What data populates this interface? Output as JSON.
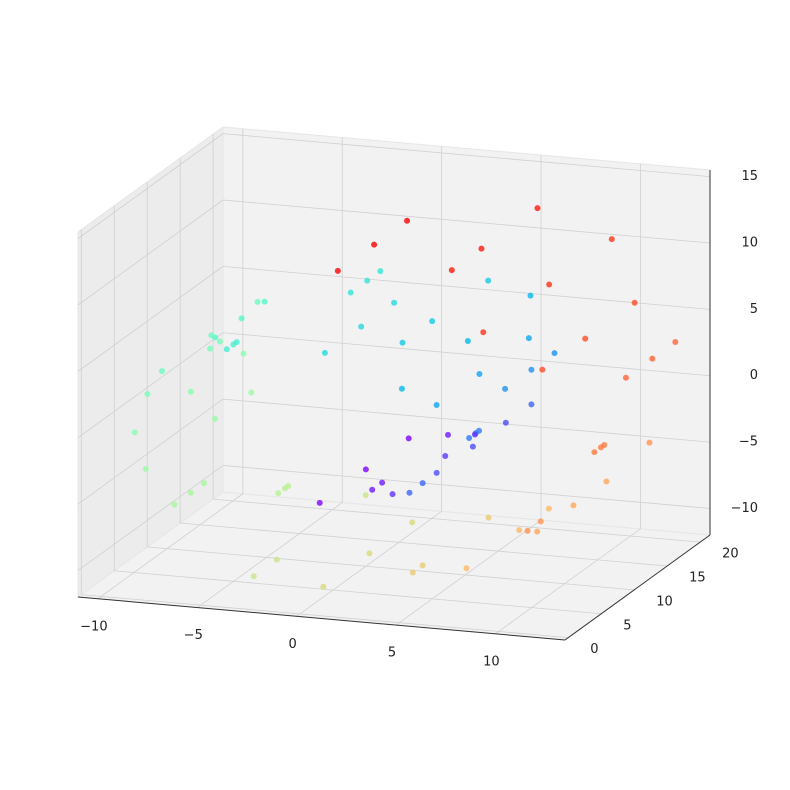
{
  "chart_data": {
    "type": "scatter3d",
    "x": [
      0,
      1.48,
      3.0,
      4.39,
      5.51,
      6.19,
      6.34,
      5.88,
      4.8,
      3.17,
      1.09,
      -1.26,
      -3.68,
      -5.92,
      -7.77,
      -9.0,
      -9.47,
      -9.08,
      -7.81,
      -5.73,
      -2.99,
      0.18,
      3.52,
      6.72,
      9.45,
      11.45,
      12.49,
      12.42,
      11.2,
      8.89,
      5.65,
      1.74,
      0,
      1.48,
      3.0,
      4.39,
      5.51,
      6.19,
      6.34,
      5.88,
      4.8,
      3.17,
      1.09,
      -1.26,
      -3.68,
      -5.92,
      -7.77,
      -9.0,
      -9.47,
      -9.08,
      -7.81,
      -5.73,
      -2.99,
      0.18,
      3.52,
      6.72,
      9.45,
      11.45,
      12.49,
      12.42,
      11.2,
      8.89,
      5.65,
      1.74,
      0,
      1.48,
      3.0,
      4.39,
      5.51,
      6.19,
      6.34,
      5.88,
      4.8,
      3.17,
      1.09,
      -1.26,
      -3.68,
      -5.92,
      -7.77,
      -9.0,
      -9.47,
      -9.08,
      -7.81,
      -5.73,
      -2.99,
      0.18,
      3.52,
      6.72,
      9.45,
      11.45,
      12.49,
      12.42,
      11.2,
      8.89,
      5.65,
      1.74
    ],
    "y": [
      3,
      8,
      13,
      18,
      2,
      7,
      12,
      17,
      1,
      6,
      11,
      16,
      0,
      5,
      10,
      15,
      20,
      4,
      9,
      14,
      19,
      3,
      8,
      13,
      18,
      2,
      7,
      12,
      17,
      1,
      6,
      11,
      10,
      18,
      5,
      13,
      0,
      8,
      16,
      3,
      11,
      19,
      6,
      14,
      1,
      9,
      17,
      4,
      12,
      20,
      7,
      15,
      2,
      10,
      18,
      5,
      13,
      0,
      8,
      16,
      3,
      11,
      19,
      6,
      16.5,
      6.5,
      17.5,
      7.5,
      18.5,
      8.5,
      19.5,
      9.5,
      20.5,
      10.5,
      0.5,
      11.5,
      1.5,
      12.5,
      2.5,
      13.5,
      3.5,
      14.5,
      4.5,
      15.5,
      5.5,
      16.5,
      6.5,
      17.5,
      7.5,
      18.5,
      8.5,
      19.5,
      9.5,
      20.5,
      10.5,
      0.5
    ],
    "z": [
      -4.71,
      -4.79,
      -4.38,
      -3.49,
      -2.14,
      -0.44,
      1.48,
      3.44,
      5.24,
      6.7,
      7.63,
      7.91,
      7.45,
      6.25,
      4.37,
      1.94,
      -0.83,
      -3.71,
      -6.42,
      -8.69,
      -10.28,
      -11.01,
      -10.75,
      -9.47,
      -7.25,
      -4.23,
      -0.68,
      3.12,
      6.81,
      10.04,
      12.49,
      13.9,
      -4.71,
      -4.79,
      -4.38,
      -3.49,
      -2.14,
      -0.44,
      1.48,
      3.44,
      5.24,
      6.7,
      7.63,
      7.91,
      7.45,
      6.25,
      4.37,
      1.94,
      -0.83,
      -3.71,
      -6.42,
      -8.69,
      -10.28,
      -11.01,
      -10.75,
      -9.47,
      -7.25,
      -4.23,
      -0.68,
      3.12,
      6.81,
      10.04,
      12.49,
      13.9,
      -4.71,
      -4.79,
      -4.38,
      -3.49,
      -2.14,
      -0.44,
      1.48,
      3.44,
      5.24,
      6.7,
      7.63,
      7.91,
      7.45,
      6.25,
      4.37,
      1.94,
      -0.83,
      -3.71,
      -6.42,
      -8.69,
      -10.28,
      -11.01,
      -10.75,
      -9.47,
      -7.25,
      -4.23,
      -0.68,
      3.12,
      6.81,
      10.04,
      12.49,
      13.9
    ],
    "colors": [
      "#8000ff",
      "#6f1aff",
      "#5f33fe",
      "#4e4cfc",
      "#3e64fa",
      "#2d7bf7",
      "#1d92f3",
      "#0ca6ef",
      "#04b9ea",
      "#15c9e5",
      "#25d8df",
      "#35e4d8",
      "#46efd1",
      "#56f7c9",
      "#67fcc1",
      "#77ffb9",
      "#88ffb0",
      "#98fca6",
      "#a9f79d",
      "#b9ef93",
      "#c9e588",
      "#dad87d",
      "#eac972",
      "#fbb967",
      "#ffa65b",
      "#ff924f",
      "#ff7b40",
      "#ff6433",
      "#ff4c27",
      "#ff331a",
      "#ff1a0d",
      "#ff0000",
      "#8000ff",
      "#6f1aff",
      "#5f33fe",
      "#4e4cfc",
      "#3e64fa",
      "#2d7bf7",
      "#1d92f3",
      "#0ca6ef",
      "#04b9ea",
      "#15c9e5",
      "#25d8df",
      "#35e4d8",
      "#46efd1",
      "#56f7c9",
      "#67fcc1",
      "#77ffb9",
      "#88ffb0",
      "#98fca6",
      "#a9f79d",
      "#b9ef93",
      "#c9e588",
      "#dad87d",
      "#eac972",
      "#fbb967",
      "#ffa65b",
      "#ff924f",
      "#ff7b40",
      "#ff6433",
      "#ff4c27",
      "#ff331a",
      "#ff1a0d",
      "#ff0000",
      "#8000ff",
      "#6f1aff",
      "#5f33fe",
      "#4e4cfc",
      "#3e64fa",
      "#2d7bf7",
      "#1d92f3",
      "#0ca6ef",
      "#04b9ea",
      "#15c9e5",
      "#25d8df",
      "#35e4d8",
      "#46efd1",
      "#56f7c9",
      "#67fcc1",
      "#77ffb9",
      "#88ffb0",
      "#98fca6",
      "#a9f79d",
      "#b9ef93",
      "#c9e588",
      "#dad87d",
      "#eac972",
      "#fbb967",
      "#ffa65b",
      "#ff924f",
      "#ff7b40",
      "#ff6433",
      "#ff4c27",
      "#ff331a",
      "#ff1a0d",
      "#ff0000"
    ],
    "xlim": [
      -11,
      13.5
    ],
    "ylim": [
      -0.5,
      21.5
    ],
    "zlim": [
      -12,
      15.5
    ],
    "xticks": [
      {
        "value": -10,
        "label": "−10"
      },
      {
        "value": -5,
        "label": "−5"
      },
      0,
      5,
      10
    ],
    "yticks": [
      0,
      5,
      10,
      15,
      20
    ],
    "zticks": [
      {
        "value": -10,
        "label": "−10"
      },
      {
        "value": -5,
        "label": "−5"
      },
      0,
      5,
      10,
      15
    ],
    "grid": true
  }
}
